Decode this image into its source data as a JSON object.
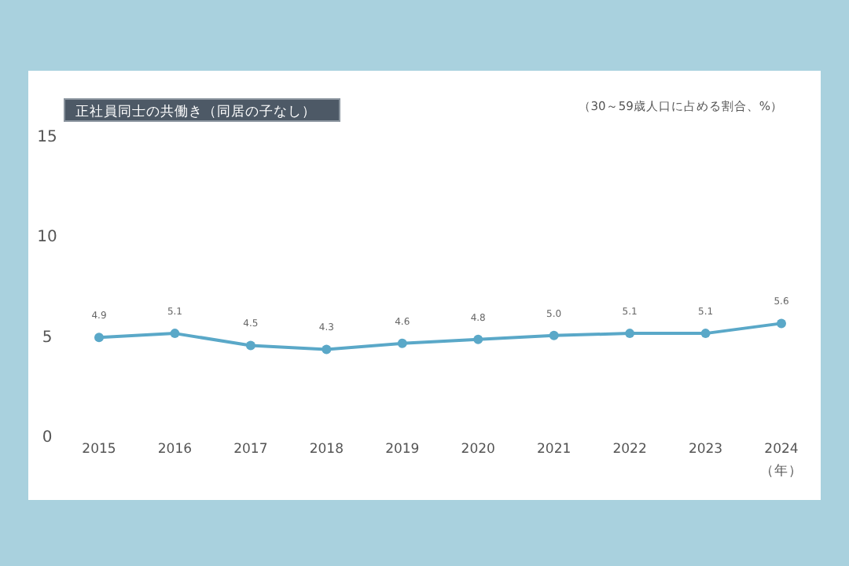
{
  "chart_data": {
    "type": "line",
    "title": "正社員同士の共働き（同居の子なし）",
    "annotations": [
      "（30～59歳人口に占める割合、%）"
    ],
    "xlabel": "（年）",
    "categories": [
      "2015",
      "2016",
      "2017",
      "2018",
      "2019",
      "2020",
      "2021",
      "2022",
      "2023",
      "2024"
    ],
    "series": [
      {
        "color": "#5aa8c8",
        "values": [
          4.9,
          5.1,
          4.5,
          4.3,
          4.6,
          4.8,
          5.0,
          5.1,
          5.1,
          5.6
        ],
        "value_labels": [
          "4.9",
          "5.1",
          "4.5",
          "4.3",
          "4.6",
          "4.8",
          "5.0",
          "5.1",
          "5.1",
          "5.6"
        ]
      }
    ],
    "ylim": [
      0,
      15
    ],
    "yticks": [
      0,
      5,
      10,
      15
    ],
    "marker": "circle",
    "grid": false
  }
}
